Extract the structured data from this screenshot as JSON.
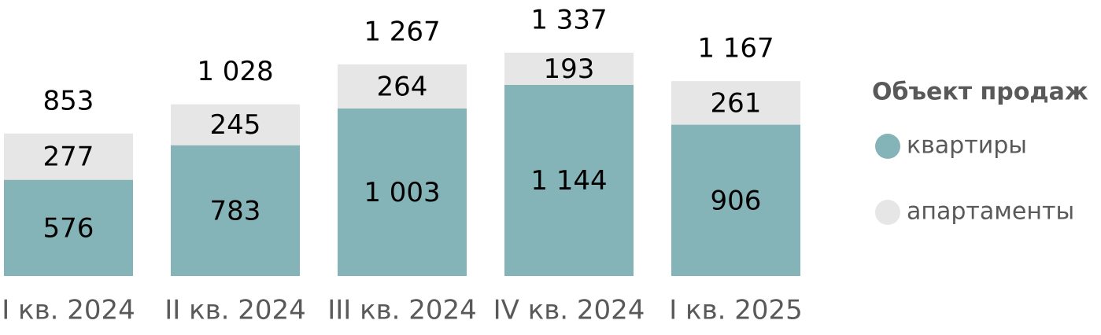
{
  "chart_data": {
    "type": "stacked-bar",
    "categories": [
      "I кв. 2024",
      "II кв. 2024",
      "III кв. 2024",
      "IV кв. 2024",
      "I кв. 2025"
    ],
    "series": [
      {
        "name": "квартиры",
        "color": "#84b3b8",
        "values": [
          576,
          783,
          1003,
          1144,
          906
        ],
        "value_labels": [
          "576",
          "783",
          "1 003",
          "1 144",
          "906"
        ]
      },
      {
        "name": "апартаменты",
        "color": "#e6e6e6",
        "values": [
          277,
          245,
          264,
          193,
          261
        ],
        "value_labels": [
          "277",
          "245",
          "264",
          "193",
          "261"
        ]
      }
    ],
    "totals": [
      853,
      1028,
      1267,
      1337,
      1167
    ],
    "total_labels": [
      "853",
      "1 028",
      "1 267",
      "1 337",
      "1 167"
    ],
    "legend_title": "Объект продаж"
  }
}
